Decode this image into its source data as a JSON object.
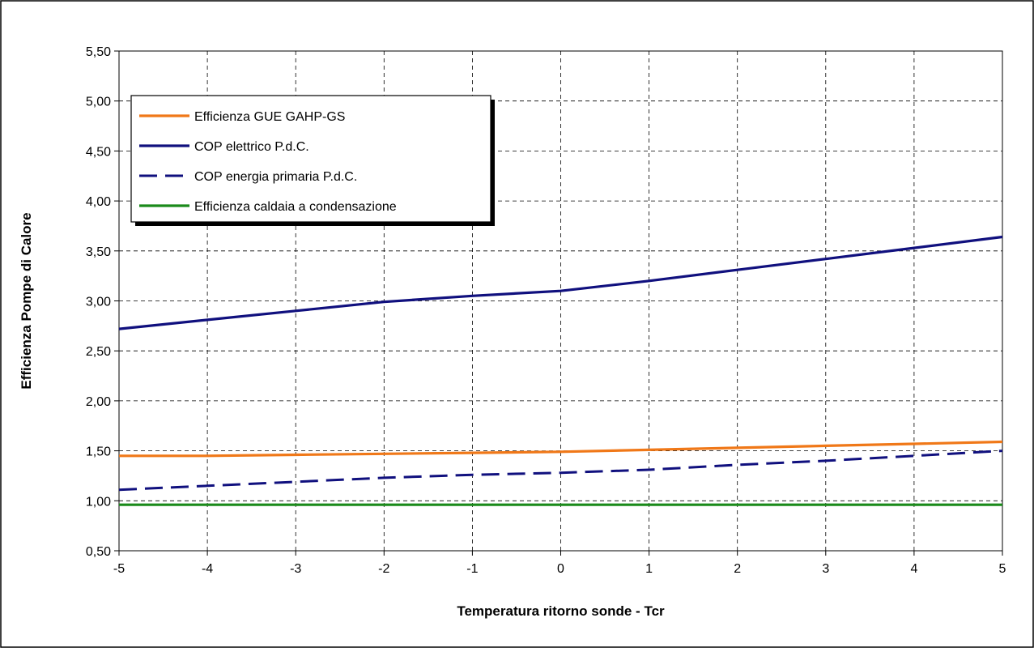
{
  "chart_data": {
    "type": "line",
    "title": "",
    "xlabel": "Temperatura ritorno sonde - Tcr",
    "ylabel": "Efficienza Pompe di Calore",
    "xlim": [
      -5,
      5
    ],
    "ylim": [
      0.5,
      5.5
    ],
    "x_ticks": [
      "-5",
      "-4",
      "-3",
      "-2",
      "-1",
      "0",
      "1",
      "2",
      "3",
      "4",
      "5"
    ],
    "y_ticks": [
      "0,50",
      "1,00",
      "1,50",
      "2,00",
      "2,50",
      "3,00",
      "3,50",
      "4,00",
      "4,50",
      "5,00",
      "5,50"
    ],
    "grid": true,
    "legend_position": "top-left",
    "x": [
      -5,
      -4,
      -3,
      -2,
      -1,
      0,
      1,
      2,
      3,
      4,
      5
    ],
    "series": [
      {
        "name": "Efficienza GUE GAHP-GS",
        "color": "#f07818",
        "style": "solid",
        "values": [
          1.45,
          1.45,
          1.46,
          1.47,
          1.48,
          1.49,
          1.51,
          1.53,
          1.55,
          1.57,
          1.59
        ]
      },
      {
        "name": "COP elettrico P.d.C.",
        "color": "#10107e",
        "style": "solid",
        "values": [
          2.72,
          2.81,
          2.9,
          2.99,
          3.05,
          3.1,
          3.2,
          3.31,
          3.42,
          3.53,
          3.64
        ]
      },
      {
        "name": "COP energia primaria P.d.C.",
        "color": "#10107e",
        "style": "dashed",
        "values": [
          1.11,
          1.15,
          1.19,
          1.23,
          1.26,
          1.28,
          1.31,
          1.36,
          1.4,
          1.45,
          1.5
        ]
      },
      {
        "name": "Efficienza caldaia a condensazione",
        "color": "#1a8a1a",
        "style": "solid",
        "values": [
          0.96,
          0.96,
          0.96,
          0.96,
          0.96,
          0.96,
          0.96,
          0.96,
          0.96,
          0.96,
          0.96
        ]
      }
    ]
  }
}
